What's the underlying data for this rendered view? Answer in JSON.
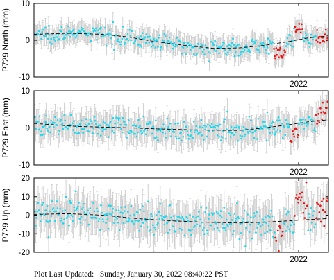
{
  "colors": {
    "observed": "#22d8ec",
    "flagged": "#ee1111",
    "errorbar": "#c8c8c8",
    "model": "#000000",
    "frame": "#000000"
  },
  "footer": {
    "label": "Plot Last Updated:",
    "value": "Sunday, January 30, 2022 08:40:22 PST"
  },
  "chart_data": [
    {
      "type": "scatter",
      "ylabel": "P729 North (mm)",
      "ylim": [
        -10,
        10
      ],
      "yticks": [
        "10",
        "0",
        "-10"
      ],
      "xlim": [
        2018.9,
        2022.35
      ],
      "xticks": [
        {
          "x": 2022.0,
          "label": "2022"
        }
      ],
      "flag_start": 2021.55,
      "base_sigma": 1.1,
      "error_bar": 2.6,
      "trend": [
        [
          2018.9,
          1.6
        ],
        [
          2019.3,
          1.9
        ],
        [
          2019.7,
          1.6
        ],
        [
          2020.0,
          0.9
        ],
        [
          2020.3,
          -0.3
        ],
        [
          2020.7,
          -1.5
        ],
        [
          2021.0,
          -2.2
        ],
        [
          2021.3,
          -2.1
        ],
        [
          2021.6,
          -1.4
        ],
        [
          2021.9,
          -0.3
        ],
        [
          2022.1,
          0.6
        ],
        [
          2022.35,
          1.2
        ]
      ],
      "features": [
        [
          2021.7,
          2021.85,
          -3.5
        ],
        [
          2021.95,
          2022.05,
          3.0
        ]
      ],
      "grid": false,
      "legend": "none"
    },
    {
      "type": "scatter",
      "ylabel": "P729 East (mm)",
      "ylim": [
        -10,
        10
      ],
      "yticks": [
        "10",
        "0",
        "-10"
      ],
      "xlim": [
        2018.9,
        2022.35
      ],
      "xticks": [
        {
          "x": 2022.0,
          "label": "2022"
        }
      ],
      "flag_start": 2021.55,
      "base_sigma": 1.5,
      "error_bar": 3.4,
      "trend": [
        [
          2018.9,
          1.2
        ],
        [
          2019.4,
          0.4
        ],
        [
          2019.9,
          0.1
        ],
        [
          2020.4,
          -0.3
        ],
        [
          2020.9,
          -0.6
        ],
        [
          2021.3,
          -0.7
        ],
        [
          2021.6,
          0.0
        ],
        [
          2021.9,
          0.9
        ],
        [
          2022.1,
          1.6
        ],
        [
          2022.35,
          2.2
        ]
      ],
      "features": [
        [
          2021.9,
          2022.0,
          -4.0
        ],
        [
          2022.2,
          2022.35,
          2.0
        ]
      ],
      "grid": false,
      "legend": "none"
    },
    {
      "type": "scatter",
      "ylabel": "P729 Up (mm)",
      "ylim": [
        -20,
        20
      ],
      "yticks": [
        "20",
        "10",
        "0",
        "-10",
        "-20"
      ],
      "xlim": [
        2018.9,
        2022.35
      ],
      "xticks": [
        {
          "x": 2022.0,
          "label": "2022"
        }
      ],
      "flag_start": 2021.55,
      "base_sigma": 4.0,
      "error_bar": 9.0,
      "trend": [
        [
          2018.9,
          0.4
        ],
        [
          2019.3,
          0.8
        ],
        [
          2019.7,
          0.0
        ],
        [
          2020.1,
          -1.8
        ],
        [
          2020.5,
          -3.0
        ],
        [
          2020.9,
          -3.8
        ],
        [
          2021.3,
          -4.2
        ],
        [
          2021.6,
          -3.8
        ],
        [
          2021.9,
          -3.0
        ],
        [
          2022.1,
          -2.4
        ],
        [
          2022.35,
          -1.8
        ]
      ],
      "features": [
        [
          2021.72,
          2021.82,
          -9.0
        ],
        [
          2021.95,
          2022.1,
          12.0
        ],
        [
          2022.2,
          2022.35,
          6.0
        ]
      ],
      "grid": false,
      "legend": "none"
    }
  ]
}
